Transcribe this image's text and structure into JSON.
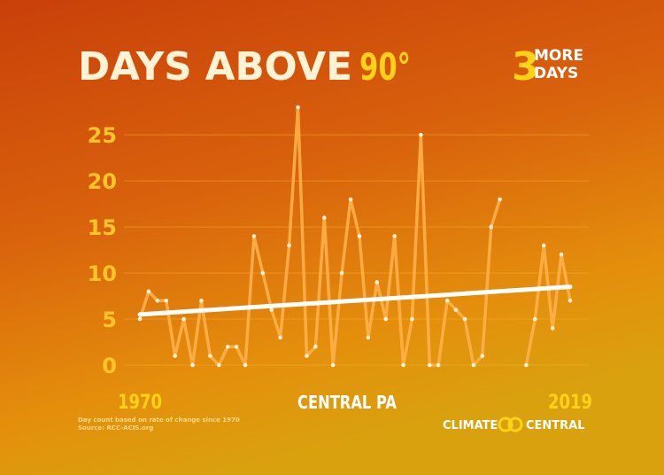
{
  "chart_data": {
    "type": "line",
    "title": "DAYS ABOVE",
    "title_highlight": "90°",
    "annotation": {
      "number": "3",
      "line1": "MORE",
      "line2": "DAYS"
    },
    "x_label": "CENTRAL PA",
    "footnote": [
      "Day count based on rate of change since 1970",
      "Source: RCC-ACIS.org"
    ],
    "brand": [
      "CLIMATE",
      "CENTRAL"
    ],
    "x": [
      1970,
      1971,
      1972,
      1973,
      1974,
      1975,
      1976,
      1977,
      1978,
      1979,
      1980,
      1981,
      1982,
      1983,
      1984,
      1985,
      1986,
      1987,
      1988,
      1989,
      1990,
      1991,
      1992,
      1993,
      1994,
      1995,
      1996,
      1997,
      1998,
      1999,
      2000,
      2001,
      2002,
      2003,
      2004,
      2005,
      2006,
      2007,
      2008,
      2009,
      2010,
      2011,
      2012,
      2013,
      2014,
      2015,
      2016,
      2017,
      2018,
      2019
    ],
    "series": [
      {
        "color": "#ffb04a",
        "values": [
          5,
          8,
          7,
          7,
          1,
          5,
          0,
          7,
          1,
          0,
          2,
          2,
          0,
          14,
          10,
          6,
          3,
          13,
          28,
          1,
          2,
          16,
          0,
          10,
          18,
          14,
          3,
          9,
          5,
          14,
          0,
          5,
          25,
          0,
          0,
          7,
          6,
          5,
          0,
          1,
          15,
          18,
          null,
          null,
          0,
          5,
          13,
          4,
          12,
          7
        ]
      }
    ],
    "trend": {
      "x": [
        1970,
        2019
      ],
      "values": [
        5.5,
        8.5
      ],
      "color": "#ffffff"
    },
    "xlim": [
      1970,
      2019
    ],
    "xticks": [
      1970,
      2019
    ],
    "ylim": [
      0,
      28
    ],
    "yticks": [
      0,
      5,
      10,
      15,
      20,
      25
    ],
    "grid": true
  }
}
